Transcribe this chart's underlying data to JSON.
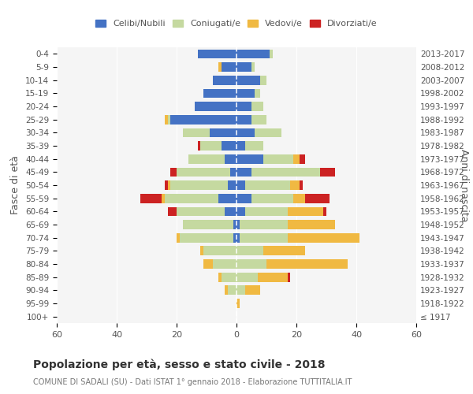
{
  "age_groups": [
    "100+",
    "95-99",
    "90-94",
    "85-89",
    "80-84",
    "75-79",
    "70-74",
    "65-69",
    "60-64",
    "55-59",
    "50-54",
    "45-49",
    "40-44",
    "35-39",
    "30-34",
    "25-29",
    "20-24",
    "15-19",
    "10-14",
    "5-9",
    "0-4"
  ],
  "birth_years": [
    "≤ 1917",
    "1918-1922",
    "1923-1927",
    "1928-1932",
    "1933-1937",
    "1938-1942",
    "1943-1947",
    "1948-1952",
    "1953-1957",
    "1958-1962",
    "1963-1967",
    "1968-1972",
    "1973-1977",
    "1978-1982",
    "1983-1987",
    "1988-1992",
    "1993-1997",
    "1998-2002",
    "2003-2007",
    "2008-2012",
    "2013-2017"
  ],
  "male": {
    "celibi": [
      0,
      0,
      0,
      0,
      0,
      0,
      1,
      1,
      4,
      6,
      3,
      2,
      4,
      5,
      9,
      22,
      14,
      11,
      8,
      5,
      13
    ],
    "coniugati": [
      0,
      0,
      3,
      5,
      8,
      11,
      18,
      17,
      16,
      18,
      19,
      18,
      12,
      7,
      9,
      1,
      0,
      0,
      0,
      0,
      0
    ],
    "vedovi": [
      0,
      0,
      1,
      1,
      3,
      1,
      1,
      0,
      0,
      1,
      1,
      0,
      0,
      0,
      0,
      1,
      0,
      0,
      0,
      1,
      0
    ],
    "divorziati": [
      0,
      0,
      0,
      0,
      0,
      0,
      0,
      0,
      3,
      7,
      1,
      2,
      0,
      1,
      0,
      0,
      0,
      0,
      0,
      0,
      0
    ]
  },
  "female": {
    "nubili": [
      0,
      0,
      0,
      0,
      0,
      0,
      1,
      1,
      3,
      5,
      3,
      5,
      9,
      3,
      6,
      5,
      5,
      6,
      8,
      5,
      11
    ],
    "coniugate": [
      0,
      0,
      3,
      7,
      10,
      9,
      16,
      16,
      14,
      14,
      15,
      23,
      10,
      6,
      9,
      5,
      4,
      2,
      2,
      1,
      1
    ],
    "vedove": [
      0,
      1,
      5,
      10,
      27,
      14,
      24,
      16,
      12,
      4,
      3,
      0,
      2,
      0,
      0,
      0,
      0,
      0,
      0,
      0,
      0
    ],
    "divorziate": [
      0,
      0,
      0,
      1,
      0,
      0,
      0,
      0,
      1,
      8,
      1,
      5,
      2,
      0,
      0,
      0,
      0,
      0,
      0,
      0,
      0
    ]
  },
  "colors": {
    "celibi": "#4472C4",
    "coniugati": "#c5d9a0",
    "vedovi": "#f0b942",
    "divorziati": "#cc2222"
  },
  "title": "Popolazione per età, sesso e stato civile - 2018",
  "subtitle": "COMUNE DI SADALI (SU) - Dati ISTAT 1° gennaio 2018 - Elaborazione TUTTITALIA.IT",
  "ylabel_left": "Fasce di età",
  "ylabel_right": "Anni di nascita",
  "xlim": 60,
  "background_color": "#ffffff"
}
